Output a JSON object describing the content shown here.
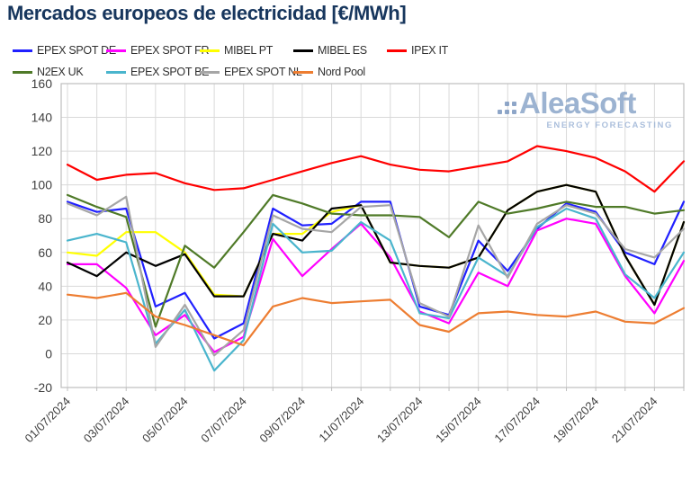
{
  "title": "Mercados europeos de electricidad [€/MWh]",
  "watermark": {
    "brand": "AleaSoft",
    "tagline": "ENERGY FORECASTING"
  },
  "colors": {
    "title": "#17365d",
    "grid": "#d9d9d9",
    "frame": "#bfbfbf",
    "axis_text": "#404040"
  },
  "chart_data": {
    "type": "line",
    "title": "Mercados europeos de electricidad [€/MWh]",
    "xlabel": "",
    "ylabel": "",
    "ylim": [
      -20,
      160
    ],
    "y_ticks": [
      160,
      140,
      120,
      100,
      80,
      60,
      40,
      20,
      0,
      -20
    ],
    "grid": true,
    "legend_position": "top",
    "x": [
      "01/07/2024",
      "02/07/2024",
      "03/07/2024",
      "04/07/2024",
      "05/07/2024",
      "06/07/2024",
      "07/07/2024",
      "08/07/2024",
      "09/07/2024",
      "10/07/2024",
      "11/07/2024",
      "12/07/2024",
      "13/07/2024",
      "14/07/2024",
      "15/07/2024",
      "16/07/2024",
      "17/07/2024",
      "18/07/2024",
      "19/07/2024",
      "20/07/2024",
      "21/07/2024",
      "22/07/2024"
    ],
    "x_tick_labels": [
      "01/07/2024",
      "03/07/2024",
      "05/07/2024",
      "07/07/2024",
      "09/07/2024",
      "11/07/2024",
      "13/07/2024",
      "15/07/2024",
      "17/07/2024",
      "19/07/2024",
      "21/07/2024"
    ],
    "series": [
      {
        "name": "EPEX SPOT DE",
        "color": "#2020ff",
        "values": [
          90,
          84,
          86,
          28,
          36,
          9,
          18,
          86,
          76,
          77,
          90,
          90,
          28,
          23,
          67,
          49,
          74,
          89,
          84,
          60,
          53,
          90
        ]
      },
      {
        "name": "EPEX SPOT FR",
        "color": "#ff00ff",
        "values": [
          53,
          53,
          39,
          11,
          23,
          1,
          10,
          68,
          46,
          62,
          77,
          57,
          25,
          18,
          48,
          40,
          73,
          80,
          77,
          46,
          24,
          55
        ]
      },
      {
        "name": "MIBEL PT",
        "color": "#ffff00",
        "values": [
          60,
          58,
          72,
          72,
          60,
          35,
          34,
          71,
          71,
          84,
          88,
          54,
          52,
          51,
          57,
          85,
          96,
          100,
          96,
          58,
          29,
          78
        ]
      },
      {
        "name": "MIBEL ES",
        "color": "#000000",
        "values": [
          54,
          46,
          60,
          52,
          59,
          34,
          34,
          71,
          67,
          86,
          88,
          54,
          52,
          51,
          57,
          85,
          96,
          100,
          96,
          58,
          29,
          78
        ]
      },
      {
        "name": "IPEX IT",
        "color": "#ff0000",
        "values": [
          112,
          103,
          106,
          107,
          101,
          97,
          98,
          103,
          108,
          113,
          117,
          112,
          109,
          108,
          111,
          114,
          123,
          120,
          116,
          108,
          96,
          114
        ]
      },
      {
        "name": "N2EX UK",
        "color": "#4f7a28",
        "values": [
          94,
          87,
          81,
          16,
          64,
          51,
          72,
          94,
          89,
          83,
          82,
          82,
          81,
          69,
          90,
          83,
          86,
          90,
          87,
          87,
          83,
          85
        ]
      },
      {
        "name": "EPEX SPOT BE",
        "color": "#4ab5cd",
        "values": [
          67,
          71,
          66,
          6,
          26,
          -10,
          8,
          77,
          60,
          61,
          78,
          67,
          24,
          21,
          57,
          46,
          75,
          86,
          80,
          47,
          33,
          60
        ]
      },
      {
        "name": "EPEX SPOT NL",
        "color": "#a6a6a6",
        "values": [
          89,
          82,
          93,
          4,
          29,
          -1,
          14,
          82,
          74,
          72,
          87,
          88,
          30,
          22,
          76,
          45,
          77,
          88,
          83,
          62,
          57,
          74
        ]
      },
      {
        "name": "Nord Pool",
        "color": "#ed7d31",
        "values": [
          35,
          33,
          36,
          22,
          17,
          11,
          5,
          28,
          33,
          30,
          31,
          32,
          17,
          13,
          24,
          25,
          23,
          22,
          25,
          19,
          18,
          27
        ]
      }
    ]
  }
}
